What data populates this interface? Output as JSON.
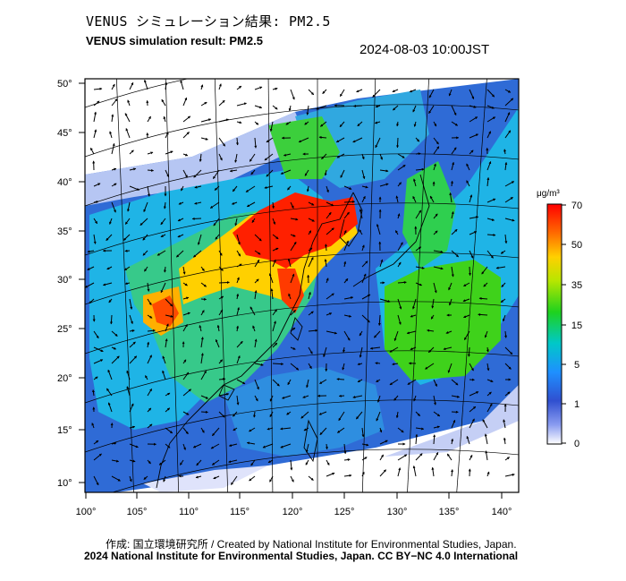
{
  "header": {
    "title_jp": "VENUS シミュレーション結果: PM2.5",
    "title_en": "VENUS simulation result: PM2.5",
    "timestamp": "2024-08-03 10:00JST"
  },
  "map": {
    "lat_labels": [
      "50°",
      "45°",
      "40°",
      "35°",
      "30°",
      "25°",
      "20°",
      "15°",
      "10°"
    ],
    "lon_labels": [
      "100°",
      "105°",
      "110°",
      "115°",
      "120°",
      "125°",
      "130°",
      "135°",
      "140°"
    ],
    "colors": {
      "very_low": "#dfe3fb",
      "low": "#2f6bd6",
      "mid_low": "#1fb4e6",
      "mid": "#37c98a",
      "mid_high": "#3fd21b",
      "high": "#ffb000",
      "very_high": "#ff2000"
    }
  },
  "colorbar": {
    "unit": "μg/m³",
    "ticks": [
      "70",
      "50",
      "35",
      "15",
      "5",
      "1",
      "0"
    ]
  },
  "footer": {
    "credit": "作成: 国立環境研究所 / Created by National Institute for Environmental Studies, Japan.",
    "license": "2024 National Institute for Environmental Studies, Japan. CC BY−NC 4.0 International"
  }
}
